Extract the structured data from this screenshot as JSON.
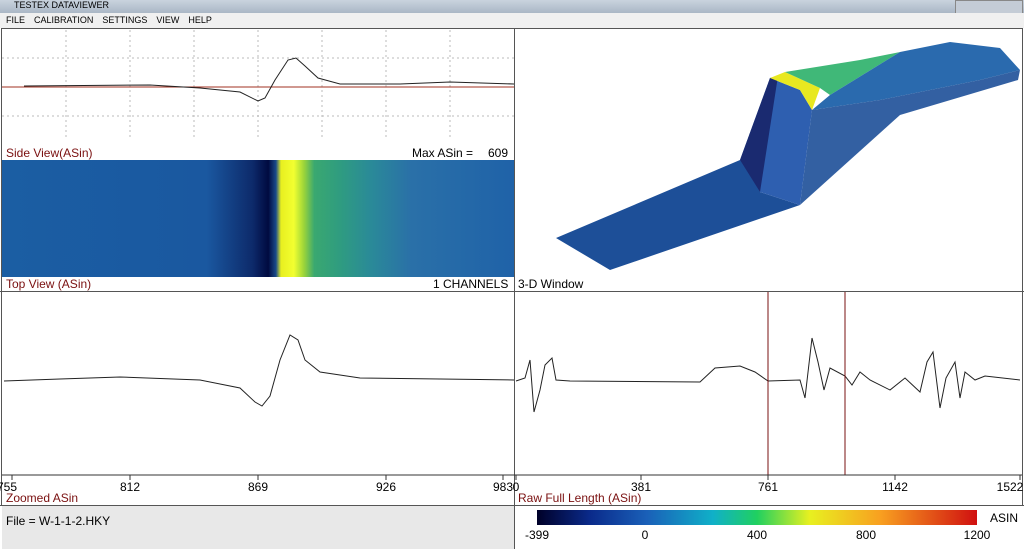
{
  "window": {
    "title": "TESTEX DATAVIEWER"
  },
  "menu": [
    "FILE",
    "CALIBRATION",
    "SETTINGS",
    "VIEW",
    "HELP"
  ],
  "side_view": {
    "label": "Side View(ASin)",
    "max_label": "Max ASin =",
    "max_value": "609"
  },
  "top_view": {
    "label": "Top View (ASin)",
    "channels": "1 CHANNELS"
  },
  "window_3d": {
    "label": "3-D Window"
  },
  "zoomed": {
    "label": "Zoomed ASin",
    "ticks": [
      "755",
      "812",
      "869",
      "926",
      "983"
    ]
  },
  "raw": {
    "label": "Raw Full Length (ASin)",
    "ticks": [
      "0",
      "381",
      "761",
      "1142",
      "1522"
    ]
  },
  "status": {
    "file": "File = W-1-1-2.HKY"
  },
  "colorbar": {
    "unit": "ASIN",
    "ticks": [
      "-399",
      "0",
      "400",
      "800",
      "1200"
    ]
  }
}
